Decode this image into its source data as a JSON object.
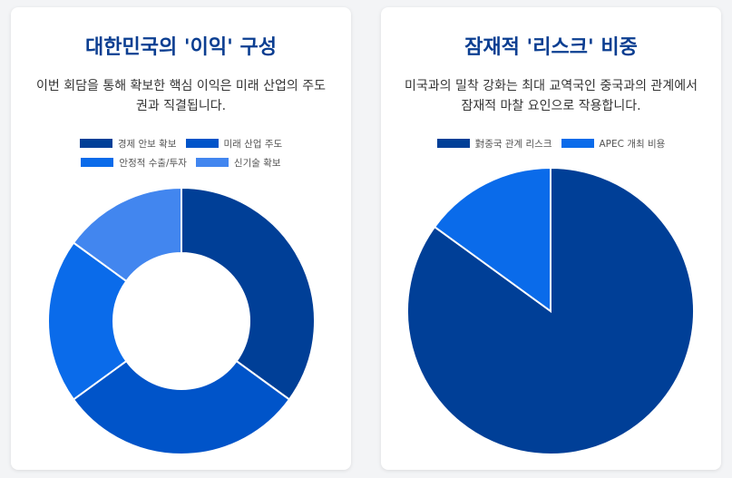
{
  "colors": {
    "title": "#0b3e91",
    "slice_stroke": "#ffffff"
  },
  "cards": [
    {
      "title": "대한민국의 '이익' 구성",
      "description": "이번 회담을 통해 확보한 핵심 이익은 미래 산업의 주도권과 직결됩니다.",
      "chart_data": {
        "type": "pie",
        "variant": "doughnut",
        "title": "",
        "categories": [
          "경제 안보 확보",
          "미래 산업 주도",
          "안정적 수출/투자",
          "신기술 확보"
        ],
        "values": [
          35,
          30,
          20,
          15
        ],
        "colors": [
          "#003f97",
          "#0054c9",
          "#0a6bea",
          "#4286ef"
        ],
        "legend_position": "top"
      }
    },
    {
      "title": "잠재적 '리스크' 비중",
      "description": "미국과의 밀착 강화는 최대 교역국인 중국과의 관계에서 잠재적 마찰 요인으로 작용합니다.",
      "chart_data": {
        "type": "pie",
        "variant": "pie",
        "title": "",
        "categories": [
          "對중국 관계 리스크",
          "APEC 개최 비용"
        ],
        "values": [
          85,
          15
        ],
        "colors": [
          "#003f97",
          "#0a6bea"
        ],
        "legend_position": "top"
      }
    }
  ]
}
